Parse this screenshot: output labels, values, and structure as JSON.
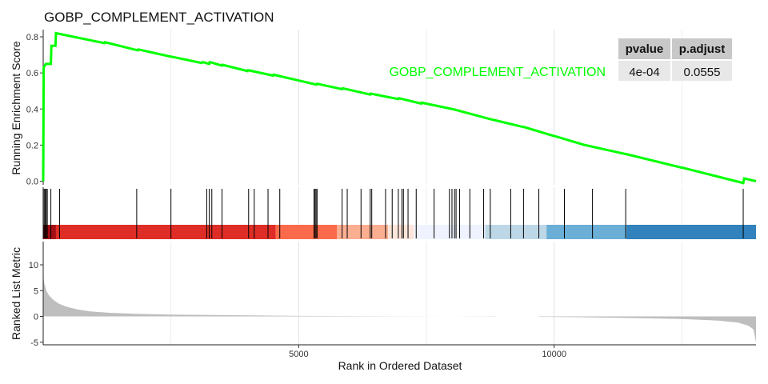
{
  "chart_data": {
    "type": "line",
    "title": "GOBP_COMPLEMENT_ACTIVATION",
    "series_label": "GOBP_COMPLEMENT_ACTIVATION",
    "series_color": "#00FF00",
    "xlabel": "Rank in Ordered Dataset",
    "xlim": [
      0,
      13950
    ],
    "x_ticks": [
      5000,
      10000
    ],
    "x_tick_labels": [
      "5000",
      "10000"
    ],
    "grid": true,
    "top_panel": {
      "ylabel": "Running Enrichment Score",
      "ylim": [
        -0.02,
        0.84
      ],
      "y_ticks": [
        0.0,
        0.2,
        0.4,
        0.6,
        0.8
      ],
      "y_tick_labels": [
        "0.0",
        "0.2",
        "0.4",
        "0.6",
        "0.8"
      ],
      "x": [
        0,
        10,
        50,
        150,
        160,
        240,
        250,
        1200,
        1210,
        1850,
        1860,
        2500,
        2510,
        3100,
        3120,
        3250,
        3260,
        3500,
        3510,
        4000,
        4010,
        4500,
        4510,
        5350,
        5360,
        5850,
        5860,
        6400,
        6410,
        6950,
        6960,
        7400,
        7410,
        8000,
        8010,
        8800,
        8810,
        9400,
        9410,
        10000,
        10010,
        10600,
        10610,
        11400,
        11410,
        12500,
        12510,
        13700,
        13720,
        13950
      ],
      "y": [
        0.0,
        0.63,
        0.65,
        0.65,
        0.75,
        0.75,
        0.82,
        0.765,
        0.77,
        0.725,
        0.73,
        0.69,
        0.69,
        0.655,
        0.66,
        0.65,
        0.66,
        0.64,
        0.645,
        0.61,
        0.615,
        0.585,
        0.59,
        0.535,
        0.54,
        0.51,
        0.515,
        0.48,
        0.485,
        0.455,
        0.46,
        0.43,
        0.435,
        0.4,
        0.4,
        0.34,
        0.34,
        0.3,
        0.3,
        0.25,
        0.25,
        0.2,
        0.2,
        0.15,
        0.15,
        0.075,
        0.075,
        -0.01,
        0.015,
        0.0
      ]
    },
    "hits": [
      0,
      20,
      40,
      60,
      80,
      150,
      320,
      1830,
      2500,
      3200,
      3250,
      3300,
      3500,
      4020,
      4130,
      4400,
      4630,
      5300,
      5320,
      5340,
      5360,
      5850,
      5950,
      6220,
      6400,
      6430,
      6700,
      6830,
      6950,
      7020,
      7050,
      7140,
      7300,
      7650,
      7950,
      8000,
      8050,
      8080,
      8150,
      8350,
      8620,
      8750,
      9150,
      9400,
      9700,
      10200,
      10750,
      11400,
      13700
    ],
    "rank_bands": [
      {
        "start": 0,
        "end": 250,
        "color": "#A50F15"
      },
      {
        "start": 250,
        "end": 4550,
        "color": "#DE2D26"
      },
      {
        "start": 4550,
        "end": 5750,
        "color": "#FB6A4A"
      },
      {
        "start": 5750,
        "end": 6750,
        "color": "#FCAE91"
      },
      {
        "start": 6750,
        "end": 7250,
        "color": "#FEE5D9"
      },
      {
        "start": 7250,
        "end": 8650,
        "color": "#EFF3FF"
      },
      {
        "start": 8650,
        "end": 9850,
        "color": "#BDD7E7"
      },
      {
        "start": 9850,
        "end": 11420,
        "color": "#6BAED6"
      },
      {
        "start": 11420,
        "end": 13950,
        "color": "#3182BD"
      }
    ],
    "bottom_panel": {
      "ylabel": "Ranked List Metric",
      "ylim": [
        -5.5,
        14.5
      ],
      "y_ticks": [
        -5,
        0,
        5,
        10
      ],
      "y_tick_labels": [
        "-5",
        "0",
        "5",
        "10"
      ],
      "x": [
        0,
        20,
        60,
        120,
        200,
        300,
        450,
        650,
        900,
        1300,
        1800,
        2500,
        3500,
        5000,
        6500,
        8000,
        9500,
        10500,
        11500,
        12500,
        13200,
        13600,
        13800,
        13900,
        13950
      ],
      "y": [
        8.0,
        6.5,
        5.0,
        4.0,
        3.2,
        2.5,
        1.9,
        1.4,
        1.0,
        0.7,
        0.5,
        0.35,
        0.25,
        0.1,
        0.05,
        0.0,
        -0.05,
        -0.15,
        -0.3,
        -0.5,
        -0.8,
        -1.2,
        -1.8,
        -2.5,
        -5.0
      ],
      "gap": [
        8870,
        9700
      ]
    },
    "stats_table": {
      "headers": [
        "pvalue",
        "p.adjust"
      ],
      "row": [
        "4e-04",
        "0.0555"
      ]
    }
  }
}
